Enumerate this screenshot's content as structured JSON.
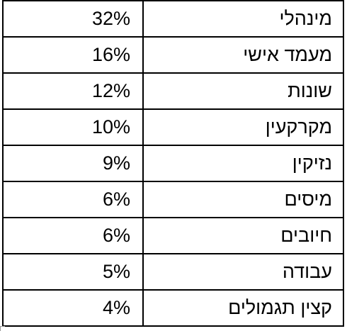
{
  "table": {
    "rows": [
      {
        "label": "מינהלי",
        "percent": "32%"
      },
      {
        "label": "מעמד אישי",
        "percent": "16%"
      },
      {
        "label": "שונות",
        "percent": "12%"
      },
      {
        "label": "מקרקעין",
        "percent": "10%"
      },
      {
        "label": "נזיקין",
        "percent": "9%"
      },
      {
        "label": "מיסים",
        "percent": "6%"
      },
      {
        "label": "חיובים",
        "percent": "6%"
      },
      {
        "label": "עבודה",
        "percent": "5%"
      },
      {
        "label": "קצין תגמולים",
        "percent": "4%"
      }
    ]
  }
}
